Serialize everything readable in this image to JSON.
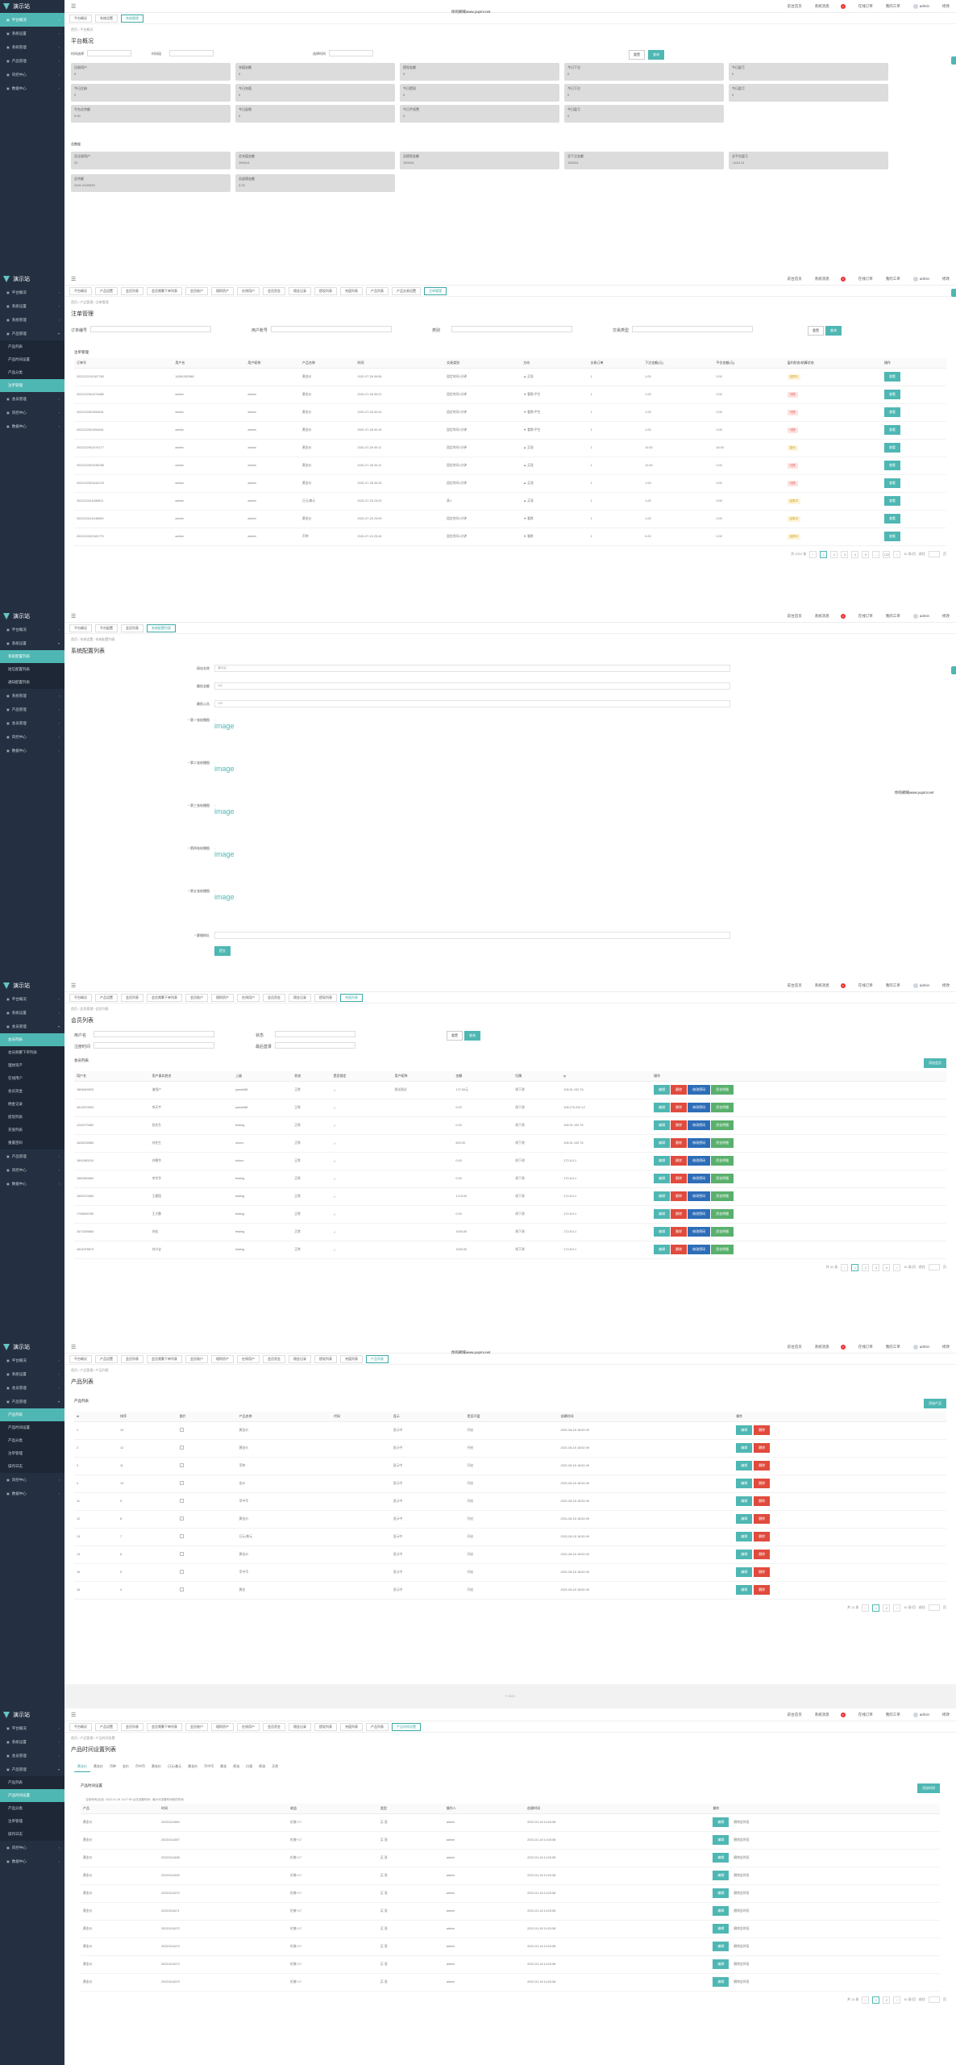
{
  "brand": "演示站",
  "watermark": "你的網域www.yupmi.net",
  "header": {
    "links": [
      "前台首页",
      "系统消息",
      "在线订单",
      "我的工单"
    ],
    "badge": "3",
    "user": "admin",
    "user_menu": "修改"
  },
  "screen1": {
    "sidebar": [
      {
        "label": "平台概况",
        "active": true
      },
      {
        "label": "系统设置"
      },
      {
        "label": "系统管理"
      },
      {
        "label": "产品管理"
      },
      {
        "label": "风控中心"
      },
      {
        "label": "数据中心"
      }
    ],
    "tabs": [
      "平台概况",
      "系统设置",
      "系统管理"
    ],
    "breadcrumb": "首页 / 平台概况",
    "title": "平台概况",
    "filter": {
      "label_a": "时间选择",
      "label_b": "时间段",
      "label_c": "选择时间",
      "btn_reset": "重置",
      "btn_search": "查询"
    },
    "cards_row1": [
      {
        "label": "注册用户",
        "value": "0"
      },
      {
        "label": "充值金额",
        "value": "0"
      },
      {
        "label": "提现金额",
        "value": "0"
      },
      {
        "label": "今日下注",
        "value": "0"
      },
      {
        "label": "今日盈亏",
        "value": "0"
      }
    ],
    "cards_row2": [
      {
        "label": "今日注册",
        "value": "0"
      },
      {
        "label": "今日充值",
        "value": "0"
      },
      {
        "label": "今日提现",
        "value": "0"
      },
      {
        "label": "今日下注",
        "value": "0"
      },
      {
        "label": "今日盈亏",
        "value": "0"
      }
    ],
    "cards_row3": [
      {
        "label": "平台总余额",
        "value": "0.00"
      },
      {
        "label": "今日返佣",
        "value": "0"
      },
      {
        "label": "今日手续费",
        "value": "0"
      },
      {
        "label": "今日盈亏",
        "value": "0"
      }
    ],
    "section2": "总数据",
    "cards_row4": [
      {
        "label": "总注册用户",
        "value": "31"
      },
      {
        "label": "总充值金额",
        "value": "100414"
      },
      {
        "label": "总提现金额",
        "value": "100414"
      },
      {
        "label": "总下注金额",
        "value": "100414"
      },
      {
        "label": "总平台盈亏",
        "value": "-1214.11"
      }
    ],
    "cards_row5": [
      {
        "label": "总余额",
        "value": "2441.2433333"
      },
      {
        "label": "总返佣金额",
        "value": "2.23"
      }
    ]
  },
  "screen2": {
    "sidebar": [
      {
        "label": "平台概况"
      },
      {
        "label": "系统设置"
      },
      {
        "label": "系统管理"
      },
      {
        "label": "产品管理",
        "open": true
      },
      {
        "label": "产品列表",
        "sub": true
      },
      {
        "label": "产品时间设置",
        "sub": true
      },
      {
        "label": "产品分类",
        "sub": true
      },
      {
        "label": "注单管理",
        "sub": true,
        "active": true
      },
      {
        "label": "会员管理"
      },
      {
        "label": "风控中心"
      },
      {
        "label": "数据中心"
      }
    ],
    "tabs": [
      "平台概况",
      "产品设置",
      "会员列表",
      "会员频繁下单列表",
      "会员账户",
      "理财资产",
      "在线用户",
      "会员资金",
      "佣金记录",
      "提现列表",
      "充值列表",
      "产品列表",
      "产品交易设置",
      "注单管理"
    ],
    "breadcrumb": "首页 / 产品管理 / 注单管理",
    "title": "注单管理",
    "filters": [
      "订单编号",
      "用户账号",
      "类别",
      "交易类型"
    ],
    "btn_reset": "重置",
    "btn_search": "查询",
    "list_title": "注单管理",
    "columns": [
      "订单号",
      "用户名",
      "用户昵称",
      "产品名称",
      "时间",
      "交易类别",
      "方向",
      "交易订单",
      "下注金额(元)",
      "平仓金额(元)",
      "盈利状态/结算状态",
      "操作"
    ],
    "rows": [
      [
        "2022122102167760",
        "16361392985",
        "",
        "黄金价",
        "2021-07-26 09:55",
        "固定时间1分钟",
        "▲ 买涨",
        "1",
        "1.00",
        "0.00",
        "结算中",
        "查看"
      ],
      [
        "2022122001074580",
        "admin",
        "admin",
        "黄金价",
        "2021-07-26 00:21",
        "固定时间1分钟",
        "▼ 看跌/平空",
        "1",
        "1.00",
        "0.00",
        "亏损",
        "查看"
      ],
      [
        "2022122001054641",
        "admin",
        "admin",
        "黄金价",
        "2021-07-26 00:20",
        "固定时间1分钟",
        "▼ 看跌/平空",
        "1",
        "1.00",
        "0.00",
        "亏损",
        "查看"
      ],
      [
        "2022122001054641",
        "admin",
        "admin",
        "黄金价",
        "2021-07-26 00:19",
        "固定时间1分钟",
        "▼ 看跌/平空",
        "1",
        "1.00",
        "0.00",
        "亏损",
        "查看"
      ],
      [
        "2022122001074177",
        "admin",
        "admin",
        "黄金价",
        "2021-07-26 00:11",
        "固定时间1分钟",
        "▲ 买涨",
        "1",
        "10.00",
        "18.00",
        "盈利",
        "查看"
      ],
      [
        "2022122001035036",
        "admin",
        "admin",
        "黄金价",
        "2021-07-26 00:11",
        "固定时间1分钟",
        "▲ 买涨",
        "1",
        "10.00",
        "0.00",
        "亏损",
        "查看"
      ],
      [
        "2022122001044276",
        "admin",
        "admin",
        "黄金价",
        "2021-07-26 00:04",
        "固定时间1分钟",
        "▲ 买涨",
        "1",
        "1.00",
        "0.00",
        "亏损",
        "查看"
      ],
      [
        "2022120116189811",
        "admin",
        "admin",
        "日元/美元",
        "2021-07-25 23:20",
        "高1",
        "▲ 买涨",
        "1",
        "1.00",
        "0.00",
        "结算中",
        "查看"
      ],
      [
        "2022120116146550",
        "admin",
        "admin",
        "黄金价",
        "2021-07-25 23:09",
        "固定时间1分钟",
        "▼ 看跌",
        "1",
        "1.00",
        "0.00",
        "结算中",
        "查看"
      ],
      [
        "2022120022181770",
        "admin",
        "admin",
        "币种",
        "2021-07-24 23:44",
        "固定时间1分钟",
        "▼ 看跌",
        "1",
        "0.00",
        "0.00",
        "结算中",
        "查看"
      ]
    ],
    "pager": {
      "total": "共 1212 条",
      "pages": [
        "1",
        "2",
        "3",
        "4",
        "5",
        "...",
        "122"
      ],
      "size": "10 条/页",
      "goto": "前往",
      "page_word": "页"
    }
  },
  "screen3": {
    "sidebar": [
      {
        "label": "平台概况"
      },
      {
        "label": "系统设置",
        "open": true
      },
      {
        "label": "系统配置列表",
        "sub": true,
        "active": true
      },
      {
        "label": "短信配置列表",
        "sub": true
      },
      {
        "label": "通知配置列表",
        "sub": true
      },
      {
        "label": "系统管理"
      },
      {
        "label": "产品管理"
      },
      {
        "label": "会员管理"
      },
      {
        "label": "风控中心"
      },
      {
        "label": "数据中心"
      }
    ],
    "tabs": [
      "平台概况",
      "平台配置",
      "会员列表",
      "系统配置列表"
    ],
    "breadcrumb": "首页 / 系统设置 / 系统配置列表",
    "title": "系统配置列表",
    "fields": [
      {
        "label": "网站名称",
        "value": "演示站"
      },
      {
        "label": "最低金额",
        "value": "100"
      },
      {
        "label": "最低公告",
        "value": "100"
      }
    ],
    "image_fields": [
      "* 第一张轮播图",
      "* 第二张轮播图",
      "* 第三张轮播图",
      "* 第四张轮播图",
      "* 第五张轮播图"
    ],
    "image_alt": "image",
    "last_field": "* 客服地址",
    "submit": "提交"
  },
  "screen4": {
    "sidebar": [
      {
        "label": "平台概况"
      },
      {
        "label": "系统设置"
      },
      {
        "label": "会员管理",
        "open": true
      },
      {
        "label": "会员列表",
        "sub": true,
        "active": true
      },
      {
        "label": "会员频繁下单列表",
        "sub": true
      },
      {
        "label": "理财资产",
        "sub": true
      },
      {
        "label": "在线用户",
        "sub": true
      },
      {
        "label": "会员资金",
        "sub": true
      },
      {
        "label": "佣金记录",
        "sub": true
      },
      {
        "label": "提现列表",
        "sub": true
      },
      {
        "label": "充值列表",
        "sub": true
      },
      {
        "label": "重置密码",
        "sub": true
      },
      {
        "label": "产品管理"
      },
      {
        "label": "风控中心"
      },
      {
        "label": "数据中心"
      }
    ],
    "tabs": [
      "平台概况",
      "产品设置",
      "会员列表",
      "会员频繁下单列表",
      "会员账户",
      "理财资产",
      "在线用户",
      "会员资金",
      "佣金记录",
      "提现列表",
      "充值列表"
    ],
    "breadcrumb": "首页 / 会员管理 / 会员列表",
    "title": "会员列表",
    "filters": [
      "用户名",
      "状态",
      "注册时间",
      "最后登录"
    ],
    "btn_reset": "重置",
    "btn_search": "查询",
    "list_title": "会员列表",
    "add_btn": "添加会员",
    "columns": [
      "用户名",
      "用户真实姓名",
      "上级",
      "状态",
      "是否锁定",
      "用户昵称",
      "金额",
      "归属",
      "ip",
      "操作"
    ],
    "rows": [
      [
        "1894849920",
        "演用户",
        "yanshi88",
        "正常",
        "✓",
        "测试测试",
        "172.00元",
        "线下测",
        "106.91.192.76"
      ],
      [
        "1813970993",
        "李天宇",
        "yanshi88",
        "正常",
        "✓",
        "",
        "0.00",
        "线下测",
        "106.175.222.12"
      ],
      [
        "1249273382",
        "张先生",
        "testing",
        "正常",
        "✓",
        "",
        "0.00",
        "线下测",
        "106.91.192.76"
      ],
      [
        "1628226580",
        "刘先生",
        "shonn",
        "正常",
        "✓",
        "",
        "500.00",
        "线下测",
        "106.91.192.76"
      ],
      [
        "1891983210",
        "刘德华",
        "shonn",
        "正常",
        "✓",
        "",
        "0.00",
        "线下测",
        "172.8.0.1"
      ],
      [
        "1652840669",
        "李华华",
        "testing",
        "正常",
        "✓",
        "",
        "0.00",
        "线下测",
        "172.8.0.1"
      ],
      [
        "1552974965",
        "王建国",
        "testing",
        "正常",
        "✓",
        "",
        "1715.00",
        "线下测",
        "172.8.0.1"
      ],
      [
        "1795605789",
        "王大鹏",
        "testing",
        "正常",
        "✓",
        "",
        "0.00",
        "线下测",
        "172.8.0.1"
      ],
      [
        "1671539683",
        "刘佳",
        "testing",
        "正常",
        "✓",
        "",
        "1000.00",
        "线下测",
        "172.8.0.1"
      ],
      [
        "1814978870",
        "刘小宝",
        "testing",
        "正常",
        "✓",
        "",
        "1000.00",
        "线下测",
        "172.8.0.1"
      ]
    ],
    "row_btns": [
      "编辑",
      "删除",
      "修改密码",
      "资金明细"
    ],
    "pager": {
      "total": "共 31 条",
      "pages": [
        "1",
        "2",
        "3",
        "4"
      ],
      "size": "10 条/页",
      "goto": "前往",
      "page_word": "页"
    }
  },
  "screen5": {
    "sidebar": [
      {
        "label": "平台概况"
      },
      {
        "label": "系统设置"
      },
      {
        "label": "会员管理"
      },
      {
        "label": "产品管理",
        "open": true
      },
      {
        "label": "产品列表",
        "sub": true,
        "active": true
      },
      {
        "label": "产品时间设置",
        "sub": true
      },
      {
        "label": "产品分类",
        "sub": true
      },
      {
        "label": "注单管理",
        "sub": true
      },
      {
        "label": "操作日志",
        "sub": true
      },
      {
        "label": "风控中心"
      },
      {
        "label": "数据中心"
      }
    ],
    "tabs": [
      "平台概况",
      "产品设置",
      "会员列表",
      "会员频繁下单列表",
      "会员账户",
      "理财资产",
      "在线用户",
      "会员资金",
      "佣金记录",
      "提现列表",
      "充值列表",
      "产品列表"
    ],
    "breadcrumb": "首页 / 产品管理 / 产品列表",
    "title": "产品列表",
    "list_title": "产品列表",
    "add_btn": "添加产品",
    "columns": [
      "id",
      "排序",
      "图片",
      "产品名称",
      "代码",
      "显示",
      "是否开盘",
      "创建时间",
      "操作"
    ],
    "rows": [
      [
        "1",
        "10",
        "黄金价",
        "",
        "显示中",
        "开启",
        "2021-06-15 18:52:49"
      ],
      [
        "2",
        "12",
        "黄金价",
        "",
        "显示中",
        "开启",
        "2021-06-15 18:52:49"
      ],
      [
        "3",
        "11",
        "币种",
        "",
        "显示中",
        "开启",
        "2021-06-15 18:52:49"
      ],
      [
        "4",
        "13",
        "金价",
        "",
        "显示中",
        "开启",
        "2021-06-15 18:52:49"
      ],
      [
        "11",
        "9",
        "币中币",
        "",
        "显示中",
        "开启",
        "2021-06-15 18:52:49"
      ],
      [
        "12",
        "8",
        "黄金价",
        "",
        "显示中",
        "开启",
        "2021-06-15 18:52:49"
      ],
      [
        "13",
        "7",
        "日元/美元",
        "",
        "显示中",
        "开启",
        "2021-06-15 18:52:49"
      ],
      [
        "14",
        "6",
        "黄金价",
        "",
        "显示中",
        "开启",
        "2021-06-15 18:52:49"
      ],
      [
        "15",
        "5",
        "币中币",
        "",
        "显示中",
        "开启",
        "2021-06-15 18:52:49"
      ],
      [
        "16",
        "4",
        "黄金",
        "",
        "显示中",
        "开启",
        "2021-06-15 18:52:49"
      ]
    ],
    "row_btns": [
      "编辑",
      "删除"
    ],
    "pager": {
      "total": "共 11 条",
      "pages": [
        "1",
        "2"
      ],
      "size": "10 条/页",
      "goto": "前往",
      "page_word": "页"
    },
    "footer": "© 2021"
  },
  "screen6": {
    "sidebar": [
      {
        "label": "平台概况"
      },
      {
        "label": "系统设置"
      },
      {
        "label": "会员管理"
      },
      {
        "label": "产品管理",
        "open": true
      },
      {
        "label": "产品列表",
        "sub": true
      },
      {
        "label": "产品时间设置",
        "sub": true,
        "active": true
      },
      {
        "label": "产品分类",
        "sub": true
      },
      {
        "label": "注单管理",
        "sub": true
      },
      {
        "label": "操作日志",
        "sub": true
      },
      {
        "label": "风控中心"
      },
      {
        "label": "数据中心"
      }
    ],
    "tabs": [
      "平台概况",
      "产品设置",
      "会员列表",
      "会员频繁下单列表",
      "会员账户",
      "理财资产",
      "在线用户",
      "会员资金",
      "佣金记录",
      "提现列表",
      "充值列表",
      "产品列表",
      "产品时间设置"
    ],
    "breadcrumb": "首页 / 产品管理 / 产品时间设置",
    "title": "产品时间设置列表",
    "product_tabs": [
      "黄金价",
      "黄金价",
      "币种",
      "金价",
      "币中币",
      "黄金价",
      "日元/美元",
      "黄金价",
      "币中币",
      "黄金",
      "原油",
      "白银",
      "原油",
      "天然"
    ],
    "list_title": "产品时间设置",
    "add_btn": "添加时间",
    "note": "当前时间(北京): 2022-01-18 14:27:59  点击设置时间：最大可设置时间段的时间",
    "columns": [
      "产品",
      "时间",
      "收益",
      "类型",
      "操作人",
      "创建时间",
      "操作"
    ],
    "rows": [
      [
        "黄金价",
        "20220111884",
        "伦敦+17",
        "买 涨",
        "admin",
        "2022-01-18 14:20:58"
      ],
      [
        "黄金价",
        "20220111697",
        "伦敦+17",
        "买 涨",
        "admin",
        "2022-01-18 14:20:58"
      ],
      [
        "黄金价",
        "20220111698",
        "伦敦+17",
        "买 涨",
        "admin",
        "2022-01-18 14:20:58"
      ],
      [
        "黄金价",
        "20220111699",
        "伦敦+17",
        "买 涨",
        "admin",
        "2022-01-18 14:20:58"
      ],
      [
        "黄金价",
        "20220111670",
        "伦敦+17",
        "买 涨",
        "admin",
        "2022-01-18 14:20:58"
      ],
      [
        "黄金价",
        "20220111671",
        "伦敦+17",
        "买 涨",
        "admin",
        "2022-01-18 14:20:58"
      ],
      [
        "黄金价",
        "20220111672",
        "伦敦+17",
        "买 涨",
        "admin",
        "2022-01-18 14:20:58"
      ],
      [
        "黄金价",
        "20220111673",
        "伦敦+17",
        "买 涨",
        "admin",
        "2022-01-18 14:20:58"
      ],
      [
        "黄金价",
        "20220111674",
        "伦敦+17",
        "买 涨",
        "admin",
        "2022-01-18 14:20:58"
      ],
      [
        "黄金价",
        "20220111675",
        "伦敦+17",
        "买 涨",
        "admin",
        "2022-01-18 14:20:58"
      ]
    ],
    "row_btn": "编辑",
    "row_link": "删除此时段",
    "pager": {
      "total": "共 11 条",
      "pages": [
        "1",
        "2"
      ],
      "size": "10 条/页",
      "goto": "前往",
      "page_word": "页"
    }
  }
}
